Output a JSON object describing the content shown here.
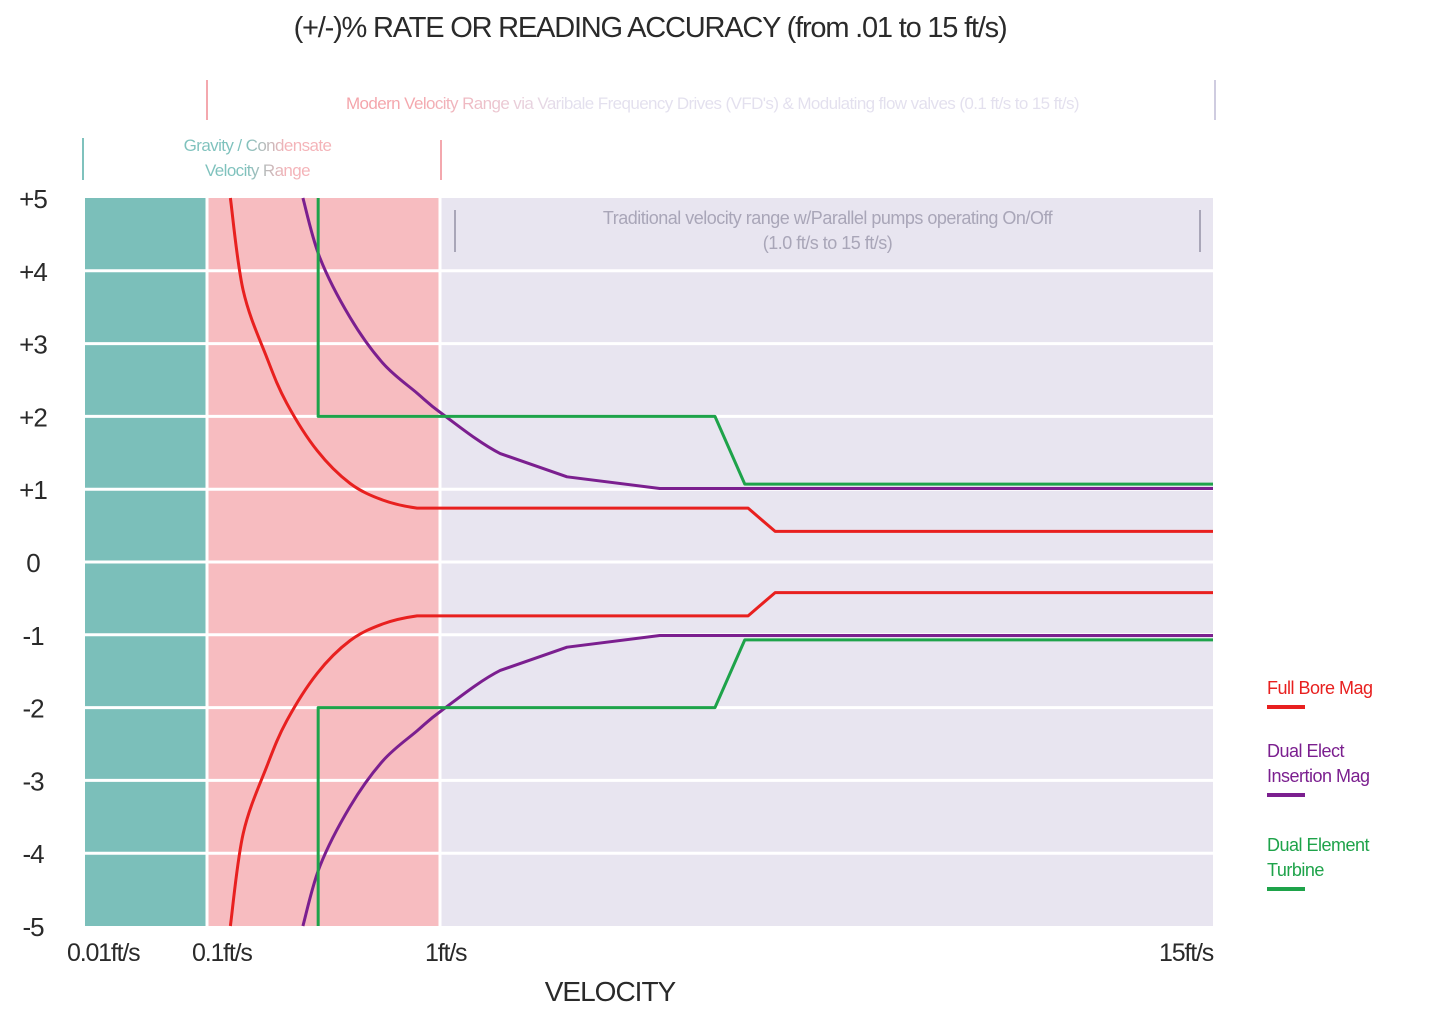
{
  "chart_data": {
    "type": "line",
    "title": "(+/-)% RATE OR READING ACCURACY (from .01 to 15 ft/s)",
    "xlabel": "VELOCITY",
    "ylabel": "",
    "ylim": [
      -5,
      5
    ],
    "xlim": [
      0.01,
      15
    ],
    "x_scale": "piecewise (log from 0.01 to 1, linear from 1 to 15)",
    "grid": "horizontal",
    "legend_position": "right",
    "y_ticks": [
      "+5",
      "+4",
      "+3",
      "+2",
      "+1",
      "0",
      "-1",
      "-2",
      "-3",
      "-4",
      "-5"
    ],
    "y_tick_values": [
      5,
      4,
      3,
      2,
      1,
      0,
      -1,
      -2,
      -3,
      -4,
      -5
    ],
    "x_ticks": [
      {
        "value": 0.01,
        "label": "0.01ft/s"
      },
      {
        "value": 0.1,
        "label": "0.1ft/s"
      },
      {
        "value": 1,
        "label": "1ft/s"
      },
      {
        "value": 15,
        "label": "15ft/s"
      }
    ],
    "bands": [
      {
        "from": 0.01,
        "to": 0.1,
        "color": "#7bbfba"
      },
      {
        "from": 0.1,
        "to": 1,
        "color": "#f7bcc0"
      },
      {
        "from": 1,
        "to": 15,
        "color": "#e8e5f0"
      }
    ],
    "annotations": {
      "modern": "Modern Velocity Range via Varibale Frequency Drives (VFD's) & Modulating flow valves (0.1 ft/s to 15 ft/s)",
      "gravity_line1": "Gravity / Condensate",
      "gravity_line2": "Velocity Range",
      "traditional_line1": "Traditional velocity range w/Parallel pumps operating On/Off",
      "traditional_line2": "(1.0 ft/s to 15 ft/s)"
    },
    "series": [
      {
        "name": "Full Bore Mag",
        "color": "#e8201f",
        "upper": [
          [
            0.126,
            5
          ],
          [
            0.143,
            3.73
          ],
          [
            0.181,
            2.8
          ],
          [
            0.22,
            2.18
          ],
          [
            0.297,
            1.53
          ],
          [
            0.411,
            1.08
          ],
          [
            0.569,
            0.85
          ],
          [
            0.797,
            0.74
          ],
          [
            1,
            0.74
          ],
          [
            6.58,
            0.74
          ],
          [
            7.07,
            0.42
          ],
          [
            15,
            0.42
          ]
        ],
        "lower": [
          [
            0.126,
            -5
          ],
          [
            0.143,
            -3.73
          ],
          [
            0.181,
            -2.8
          ],
          [
            0.22,
            -2.18
          ],
          [
            0.297,
            -1.53
          ],
          [
            0.411,
            -1.08
          ],
          [
            0.569,
            -0.85
          ],
          [
            0.797,
            -0.74
          ],
          [
            1,
            -0.74
          ],
          [
            6.58,
            -0.74
          ],
          [
            7.07,
            -0.42
          ],
          [
            15,
            -0.42
          ]
        ]
      },
      {
        "name": "Dual Elect Insertion Mag",
        "color": "#7b1f8f",
        "upper": [
          [
            0.258,
            5
          ],
          [
            0.305,
            4.18
          ],
          [
            0.411,
            3.36
          ],
          [
            0.569,
            2.73
          ],
          [
            0.797,
            2.32
          ],
          [
            1.03,
            2.04
          ],
          [
            2.09,
            1.49
          ],
          [
            3.3,
            1.17
          ],
          [
            4.98,
            1.01
          ],
          [
            15,
            1.01
          ]
        ],
        "lower": [
          [
            0.258,
            -5
          ],
          [
            0.305,
            -4.18
          ],
          [
            0.411,
            -3.36
          ],
          [
            0.569,
            -2.73
          ],
          [
            0.797,
            -2.32
          ],
          [
            1.03,
            -2.04
          ],
          [
            2.09,
            -1.49
          ],
          [
            3.3,
            -1.17
          ],
          [
            4.98,
            -1.01
          ],
          [
            15,
            -1.01
          ]
        ]
      },
      {
        "name": "Dual Element Turbine",
        "color": "#1ea34a",
        "upper": [
          [
            0.3,
            5
          ],
          [
            0.3,
            2
          ],
          [
            5.98,
            2
          ],
          [
            6.52,
            1.07
          ],
          [
            15,
            1.07
          ]
        ],
        "lower": [
          [
            0.3,
            -5
          ],
          [
            0.3,
            -2
          ],
          [
            5.98,
            -2
          ],
          [
            6.52,
            -1.07
          ],
          [
            15,
            -1.07
          ]
        ]
      }
    ],
    "legend": [
      {
        "line1": "Full Bore Mag",
        "line2": "",
        "color": "#e8201f"
      },
      {
        "line1": "Dual Elect",
        "line2": "Insertion Mag",
        "color": "#7b1f8f"
      },
      {
        "line1": "Dual Element",
        "line2": "Turbine",
        "color": "#1ea34a"
      }
    ]
  }
}
